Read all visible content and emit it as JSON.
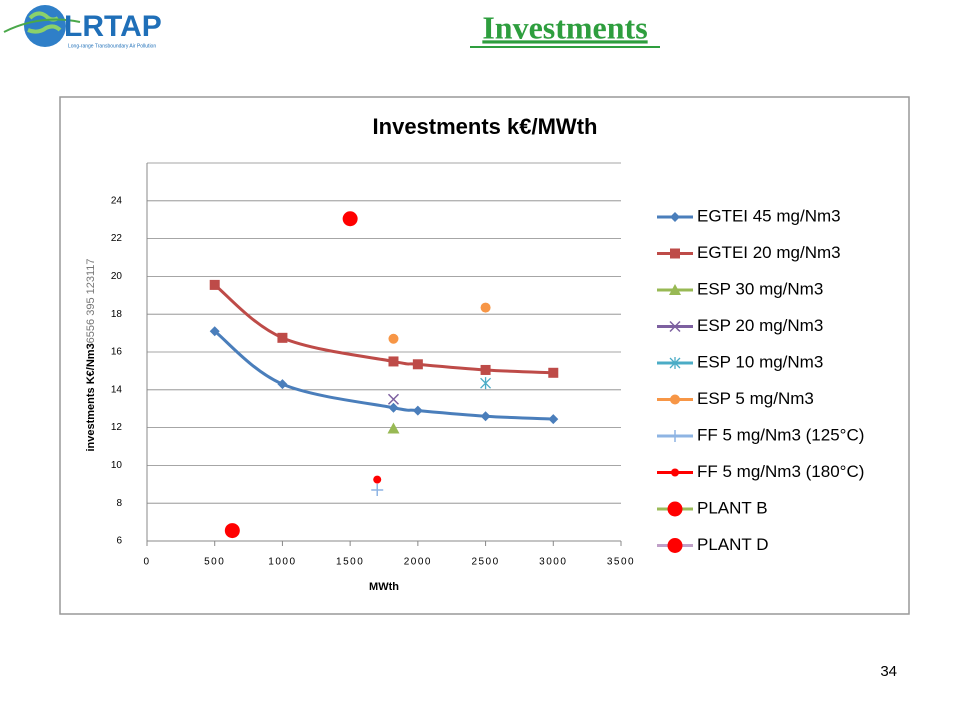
{
  "header": {
    "logo_text": "LRTAP",
    "logo_subtitle": "Long-range Transboundary Air Pollution",
    "title": "Investments"
  },
  "page_number": 34,
  "chart_data": {
    "type": "scatter",
    "title": "Investments k€/MWth",
    "xlabel": "MWth",
    "ylabel": "investments K€/Nm3",
    "ylabel_note": "6556 395 123117",
    "xlim": [
      0,
      3500
    ],
    "xticks": [
      0,
      500,
      1000,
      1500,
      2000,
      2500,
      3000,
      3500
    ],
    "ylim": [
      6,
      26
    ],
    "yticks": [
      6,
      8,
      10,
      12,
      14,
      16,
      18,
      20,
      22,
      24
    ],
    "grid": true,
    "legend": "right",
    "series": [
      {
        "name": "EGTEI 45 mg/Nm3",
        "color": "#4a7ebb",
        "marker": "diamond",
        "line": true,
        "x": [
          500,
          1000,
          1820,
          2000,
          2500,
          3000
        ],
        "values": [
          17.1,
          14.3,
          13.05,
          12.9,
          12.6,
          12.45
        ]
      },
      {
        "name": "EGTEI 20 mg/Nm3",
        "color": "#be4b48",
        "marker": "square",
        "line": true,
        "x": [
          500,
          1000,
          1820,
          2000,
          2500,
          3000
        ],
        "values": [
          19.55,
          16.75,
          15.5,
          15.35,
          15.05,
          14.9
        ]
      },
      {
        "name": "ESP 30 mg/Nm3",
        "color": "#98b954",
        "marker": "triangle",
        "line": false,
        "x": [
          1820
        ],
        "values": [
          11.95
        ]
      },
      {
        "name": "ESP 20 mg/Nm3",
        "color": "#7d60a0",
        "marker": "cross",
        "line": false,
        "x": [
          1820
        ],
        "values": [
          13.5
        ]
      },
      {
        "name": "ESP 10 mg/Nm3",
        "color": "#4bacc6",
        "marker": "star",
        "line": false,
        "x": [
          2500
        ],
        "values": [
          14.35
        ]
      },
      {
        "name": "ESP 5 mg/Nm3",
        "color": "#f79646",
        "marker": "circle",
        "line": false,
        "x": [
          1820,
          2500
        ],
        "values": [
          16.7,
          18.35
        ]
      },
      {
        "name": "FF 5 mg/Nm3 (125°C)",
        "color": "#8eb4e3",
        "marker": "plus",
        "line": false,
        "x": [
          1700
        ],
        "values": [
          8.7
        ]
      },
      {
        "name": "FF 5 mg/Nm3 (180°C)",
        "color": "#ff0000",
        "marker": "smallcircle",
        "line": false,
        "x": [
          1700
        ],
        "values": [
          9.25
        ]
      },
      {
        "name": "PLANT B",
        "color": "#ff0000",
        "legend_line_color": "#9bbb59",
        "marker": "bigcircle",
        "line": false,
        "x": [
          1500
        ],
        "values": [
          23.05
        ]
      },
      {
        "name": "PLANT D",
        "color": "#ff0000",
        "legend_line_color": "#c0a0c8",
        "marker": "bigcircle",
        "line": false,
        "x": [
          630
        ],
        "values": [
          6.55
        ]
      }
    ]
  }
}
